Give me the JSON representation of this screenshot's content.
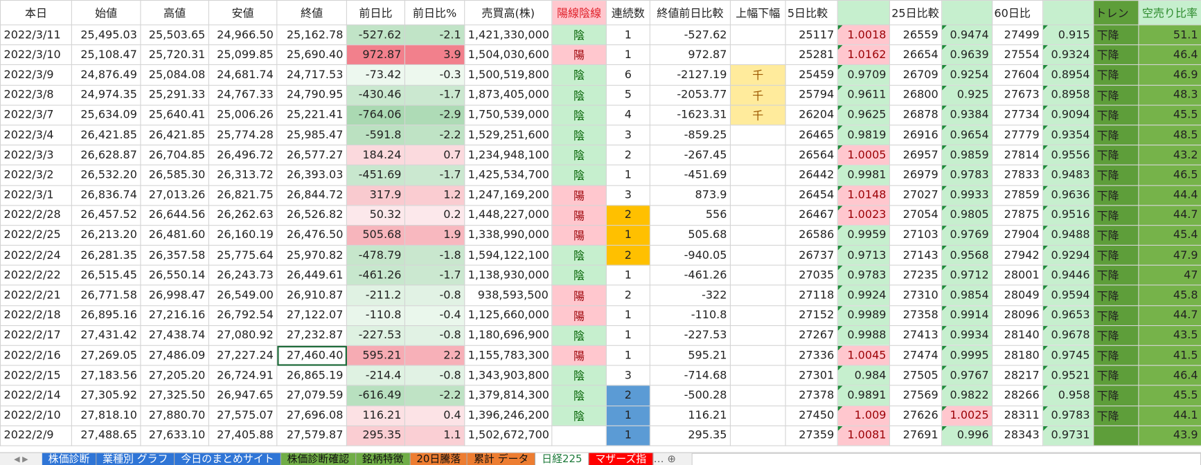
{
  "header": [
    "本日",
    "始値",
    "高値",
    "安値",
    "終値",
    "前日比",
    "前日比%",
    "売買高(株)",
    "陽線陰線",
    "連続数",
    "終値前日比較",
    "上幅下幅",
    "5日比較",
    null,
    "25日比較",
    null,
    "60日比",
    null,
    "トレン",
    "空売り比率"
  ],
  "rows": [
    [
      "2022/3/11",
      "25,495.03",
      "25,503.65",
      "24,966.50",
      "25,162.78",
      "-527.62",
      "-2.1",
      "1,421,330,000",
      "陰",
      "1",
      "-527.62",
      null,
      "25117",
      "1.0018",
      "26559",
      "0.9474",
      "27499",
      "0.915",
      "下降",
      "51.1"
    ],
    [
      "2022/3/10",
      "25,108.47",
      "25,720.31",
      "25,099.85",
      "25,690.40",
      "972.87",
      "3.9",
      "1,504,030,600",
      "陽",
      "1",
      "972.87",
      null,
      "25281",
      "1.0162",
      "26654",
      "0.9639",
      "27554",
      "0.9324",
      "下降",
      "46.4"
    ],
    [
      "2022/3/9",
      "24,876.49",
      "25,084.08",
      "24,681.74",
      "24,717.53",
      "-73.42",
      "-0.3",
      "1,500,519,800",
      "陰",
      "6",
      "-2127.19",
      "千",
      "25459",
      "0.9709",
      "26709",
      "0.9254",
      "27604",
      "0.8954",
      "下降",
      "46.9"
    ],
    [
      "2022/3/8",
      "24,974.35",
      "25,291.33",
      "24,767.33",
      "24,790.95",
      "-430.46",
      "-1.7",
      "1,873,405,000",
      "陰",
      "5",
      "-2053.77",
      "千",
      "25794",
      "0.9611",
      "26800",
      "0.925",
      "27673",
      "0.8958",
      "下降",
      "48.3"
    ],
    [
      "2022/3/7",
      "25,634.09",
      "25,640.41",
      "25,006.26",
      "25,221.41",
      "-764.06",
      "-2.9",
      "1,750,539,000",
      "陰",
      "4",
      "-1623.31",
      "千",
      "26204",
      "0.9625",
      "26878",
      "0.9384",
      "27734",
      "0.9094",
      "下降",
      "45.5"
    ],
    [
      "2022/3/4",
      "26,421.85",
      "26,421.85",
      "25,774.28",
      "25,985.47",
      "-591.8",
      "-2.2",
      "1,529,251,600",
      "陰",
      "3",
      "-859.25",
      null,
      "26465",
      "0.9819",
      "26916",
      "0.9654",
      "27779",
      "0.9354",
      "下降",
      "48.5"
    ],
    [
      "2022/3/3",
      "26,628.87",
      "26,704.85",
      "26,496.72",
      "26,577.27",
      "184.24",
      "0.7",
      "1,234,948,100",
      "陰",
      "2",
      "-267.45",
      null,
      "26564",
      "1.0005",
      "26957",
      "0.9859",
      "27814",
      "0.9556",
      "下降",
      "43.2"
    ],
    [
      "2022/3/2",
      "26,532.20",
      "26,585.30",
      "26,313.72",
      "26,393.03",
      "-451.69",
      "-1.7",
      "1,425,534,700",
      "陰",
      "1",
      "-451.69",
      null,
      "26442",
      "0.9981",
      "26979",
      "0.9783",
      "27833",
      "0.9483",
      "下降",
      "46.5"
    ],
    [
      "2022/3/1",
      "26,836.74",
      "27,013.26",
      "26,821.75",
      "26,844.72",
      "317.9",
      "1.2",
      "1,247,169,200",
      "陽",
      "3",
      "873.9",
      null,
      "26454",
      "1.0148",
      "27027",
      "0.9933",
      "27859",
      "0.9636",
      "下降",
      "44.4"
    ],
    [
      "2022/2/28",
      "26,457.52",
      "26,644.56",
      "26,262.63",
      "26,526.82",
      "50.32",
      "0.2",
      "1,448,227,000",
      "陽",
      "2",
      "556",
      null,
      "26467",
      "1.0023",
      "27054",
      "0.9805",
      "27875",
      "0.9516",
      "下降",
      "44.7"
    ],
    [
      "2022/2/25",
      "26,213.20",
      "26,481.60",
      "26,160.19",
      "26,476.50",
      "505.68",
      "1.9",
      "1,338,990,000",
      "陽",
      "1",
      "505.68",
      null,
      "26586",
      "0.9959",
      "27103",
      "0.9769",
      "27904",
      "0.9488",
      "下降",
      "45.4"
    ],
    [
      "2022/2/24",
      "26,281.35",
      "26,357.58",
      "25,775.64",
      "25,970.82",
      "-478.79",
      "-1.8",
      "1,594,122,100",
      "陰",
      "2",
      "-940.05",
      null,
      "26737",
      "0.9713",
      "27143",
      "0.9568",
      "27942",
      "0.9294",
      "下降",
      "47.9"
    ],
    [
      "2022/2/22",
      "26,515.45",
      "26,550.14",
      "26,243.73",
      "26,449.61",
      "-461.26",
      "-1.7",
      "1,138,930,000",
      "陰",
      "1",
      "-461.26",
      null,
      "27035",
      "0.9783",
      "27235",
      "0.9712",
      "28001",
      "0.9446",
      "下降",
      "47"
    ],
    [
      "2022/2/21",
      "26,771.58",
      "26,998.47",
      "26,549.00",
      "26,910.87",
      "-211.2",
      "-0.8",
      "938,593,500",
      "陽",
      "2",
      "-322",
      null,
      "27118",
      "0.9924",
      "27310",
      "0.9854",
      "28049",
      "0.9594",
      "下降",
      "45.8"
    ],
    [
      "2022/2/18",
      "26,895.16",
      "27,216.16",
      "26,792.54",
      "27,122.07",
      "-110.8",
      "-0.4",
      "1,125,660,000",
      "陽",
      "1",
      "-110.8",
      null,
      "27152",
      "0.9989",
      "27358",
      "0.9914",
      "28096",
      "0.9653",
      "下降",
      "44.7"
    ],
    [
      "2022/2/17",
      "27,431.42",
      "27,438.74",
      "27,080.92",
      "27,232.87",
      "-227.53",
      "-0.8",
      "1,180,696,900",
      "陰",
      "1",
      "-227.53",
      null,
      "27267",
      "0.9988",
      "27413",
      "0.9934",
      "28140",
      "0.9678",
      "下降",
      "43.5"
    ],
    [
      "2022/2/16",
      "27,269.05",
      "27,486.09",
      "27,227.24",
      "27,460.40",
      "595.21",
      "2.2",
      "1,155,783,300",
      "陽",
      "1",
      "595.21",
      null,
      "27336",
      "1.0045",
      "27474",
      "0.9995",
      "28180",
      "0.9745",
      "下降",
      "41.5"
    ],
    [
      "2022/2/15",
      "27,183.56",
      "27,205.20",
      "26,724.91",
      "26,865.19",
      "-214.4",
      "-0.8",
      "1,343,903,800",
      "陰",
      "3",
      "-714.68",
      null,
      "27301",
      "0.984",
      "27505",
      "0.9767",
      "28217",
      "0.9521",
      "下降",
      "46.4"
    ],
    [
      "2022/2/14",
      "27,305.92",
      "27,325.50",
      "26,947.65",
      "27,079.59",
      "-616.49",
      "-2.2",
      "1,379,814,300",
      "陰",
      "2",
      "-500.28",
      null,
      "27378",
      "0.9891",
      "27569",
      "0.9822",
      "28266",
      "0.958",
      "下降",
      "45.5"
    ],
    [
      "2022/2/10",
      "27,818.10",
      "27,880.70",
      "27,575.07",
      "27,696.08",
      "116.21",
      "0.4",
      "1,396,246,200",
      "陰",
      "1",
      "116.21",
      null,
      "27450",
      "1.009",
      "27626",
      "1.0025",
      "28311",
      "0.9783",
      "下降",
      "44.1"
    ],
    [
      "2022/2/9",
      "27,488.65",
      "27,633.10",
      "27,405.88",
      "27,579.87",
      "295.35",
      "1.1",
      "1,502,672,700",
      null,
      "1",
      "295.35",
      null,
      "27359",
      "1.0081",
      "27691",
      "0.996",
      "28343",
      "0.9731",
      null,
      "43.9"
    ]
  ],
  "tabs": [
    "株価診断",
    "業種別 グラフ",
    "今日のまとめサイト",
    "株価診断確認",
    "銘柄特徴",
    "20日騰落",
    "累計 データ",
    "日経225",
    "マザーズ指"
  ]
}
